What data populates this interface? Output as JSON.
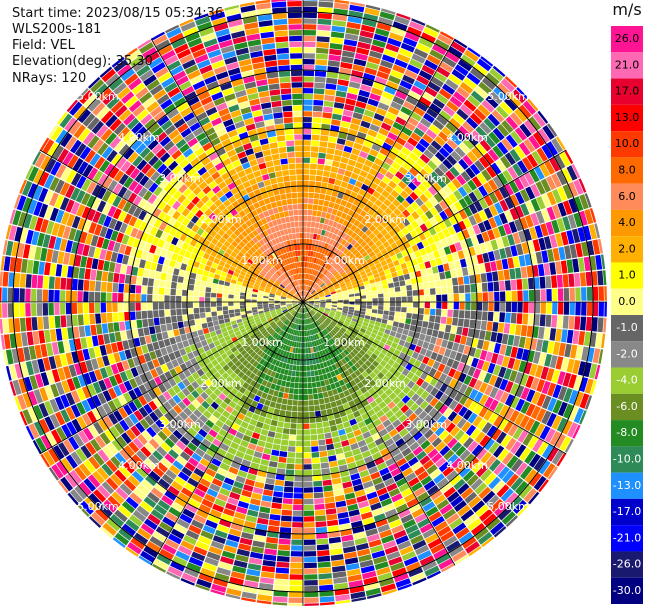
{
  "header": {
    "start_time": "Start time: 2023/08/15 05:34:36",
    "instrument": "WLS200s-181",
    "field": "Field: VEL",
    "elevation": "Elevation(deg): 35.30",
    "nrays": "NRays: 120"
  },
  "chart_data": {
    "type": "heatmap",
    "projection": "polar (PPI radar scan)",
    "field": "VEL",
    "unit": "m/s",
    "rays": 120,
    "elevation_deg": 35.3,
    "range_rings_km": [
      1,
      2,
      3,
      4,
      5
    ],
    "ring_labels": [
      "1.00km",
      "2.00km",
      "3.00km",
      "4.00km",
      "5.00km"
    ],
    "azimuth_spokes_deg": [
      0,
      30,
      60,
      90,
      120,
      150,
      180,
      210,
      240,
      270,
      300,
      330
    ],
    "colorbar": {
      "label": "m/s",
      "ticks": [
        "26.0",
        "21.0",
        "17.0",
        "13.0",
        "10.0",
        "8.0",
        "6.0",
        "4.0",
        "2.0",
        "1.0",
        "0.0",
        "-1.0",
        "-2.0",
        "-4.0",
        "-6.0",
        "-8.0",
        "-10.0",
        "-13.0",
        "-17.0",
        "-21.0",
        "-26.0",
        "-30.0"
      ],
      "colors": [
        "#ff1493",
        "#ff69b4",
        "#e8002e",
        "#ff0000",
        "#ff3a00",
        "#ff6a00",
        "#ff8a5a",
        "#ff9900",
        "#ffb000",
        "#ffff00",
        "#ffff88",
        "#666666",
        "#888888",
        "#9acd32",
        "#6b8e23",
        "#228b22",
        "#2e8b57",
        "#1e90ff",
        "#0000cd",
        "#0000ff",
        "#191970",
        "#000080"
      ]
    },
    "approx_velocity_pattern": {
      "north_near_km_0_to_1.5": "2.0 to 6.0 (positive, peak ~8.0 near 0.6km)",
      "south_near_km_0_to_1.5": "-2.0 to -8.0 (negative)",
      "east_west_axis": "around 0.0",
      "beyond_3km": "noisy / random values"
    }
  }
}
